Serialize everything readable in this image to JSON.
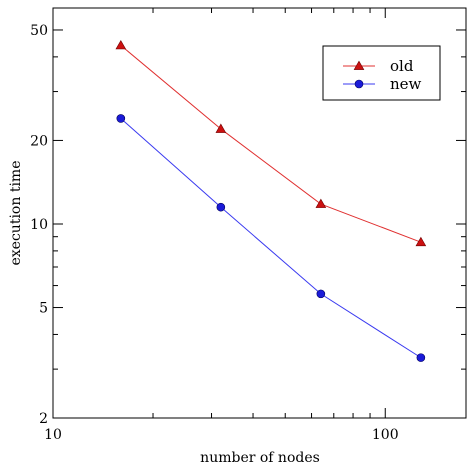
{
  "chart_data": {
    "type": "line",
    "xlabel": "number of nodes",
    "ylabel": "execution time",
    "xscale": "log",
    "yscale": "log",
    "xlim": [
      10,
      175
    ],
    "ylim": [
      2,
      60
    ],
    "xticks": [
      10,
      100
    ],
    "xtick_labels": [
      "10",
      "100"
    ],
    "yticks": [
      2,
      5,
      10,
      20,
      50
    ],
    "ytick_labels": [
      "2",
      "5",
      "10",
      "20",
      "50"
    ],
    "grid": false,
    "legend_position": "top-right",
    "x": [
      16,
      32,
      64,
      128
    ],
    "series": [
      {
        "name": "old",
        "values": [
          44,
          22,
          11.8,
          8.6
        ],
        "color": "#e03030",
        "marker": "triangle",
        "marker_fill": "#cc1010"
      },
      {
        "name": "new",
        "values": [
          24,
          11.5,
          5.6,
          3.3
        ],
        "color": "#3a3af0",
        "marker": "circle",
        "marker_fill": "#1a1ad8"
      }
    ]
  }
}
